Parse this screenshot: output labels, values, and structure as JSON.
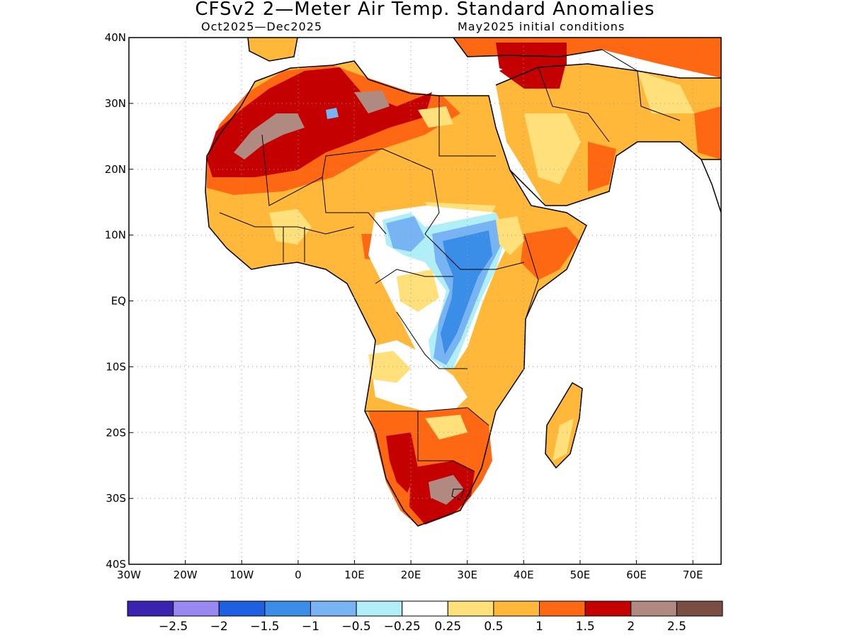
{
  "title": "CFSv2 2—Meter Air Temp. Standard Anomalies",
  "subtitle_left": "Oct2025—Dec2025",
  "subtitle_right": "May2025 initial conditions",
  "map": {
    "lon_range": [
      -30,
      75
    ],
    "lat_range": [
      -40,
      40
    ],
    "grid": "dotted",
    "x_ticks": [
      {
        "value": -30,
        "label": "30W"
      },
      {
        "value": -20,
        "label": "20W"
      },
      {
        "value": -10,
        "label": "10W"
      },
      {
        "value": 0,
        "label": "0"
      },
      {
        "value": 10,
        "label": "10E"
      },
      {
        "value": 20,
        "label": "20E"
      },
      {
        "value": 30,
        "label": "30E"
      },
      {
        "value": 40,
        "label": "40E"
      },
      {
        "value": 50,
        "label": "50E"
      },
      {
        "value": 60,
        "label": "60E"
      },
      {
        "value": 70,
        "label": "70E"
      }
    ],
    "y_ticks": [
      {
        "value": 40,
        "label": "40N"
      },
      {
        "value": 30,
        "label": "30N"
      },
      {
        "value": 20,
        "label": "20N"
      },
      {
        "value": 10,
        "label": "10N"
      },
      {
        "value": 0,
        "label": "EQ"
      },
      {
        "value": -10,
        "label": "10S"
      },
      {
        "value": -20,
        "label": "20S"
      },
      {
        "value": -30,
        "label": "30S"
      },
      {
        "value": -40,
        "label": "40S"
      }
    ]
  },
  "colorbar": {
    "colors": [
      "#3a23b0",
      "#9a88f2",
      "#1f60e0",
      "#3a8ee8",
      "#78b4f4",
      "#b0eef8",
      "#ffffff",
      "#ffe07a",
      "#ffb83a",
      "#ff6812",
      "#c40000",
      "#b08a80",
      "#7a4e42"
    ],
    "labels": [
      "−2.5",
      "−2",
      "−1.5",
      "−1",
      "−0.5",
      "−0.25",
      "0.25",
      "0.5",
      "1",
      "1.5",
      "2",
      "2.5"
    ]
  },
  "colors": {
    "coast": "#000000",
    "grid": "#999999",
    "light_orange": "#ffe07a",
    "orange": "#ffb83a",
    "dark_orange": "#ff6812",
    "red": "#c40000",
    "taupe": "#b08a80",
    "pale_blue": "#b0eef8",
    "light_blue": "#78b4f4",
    "mid_blue": "#3a8ee8"
  }
}
